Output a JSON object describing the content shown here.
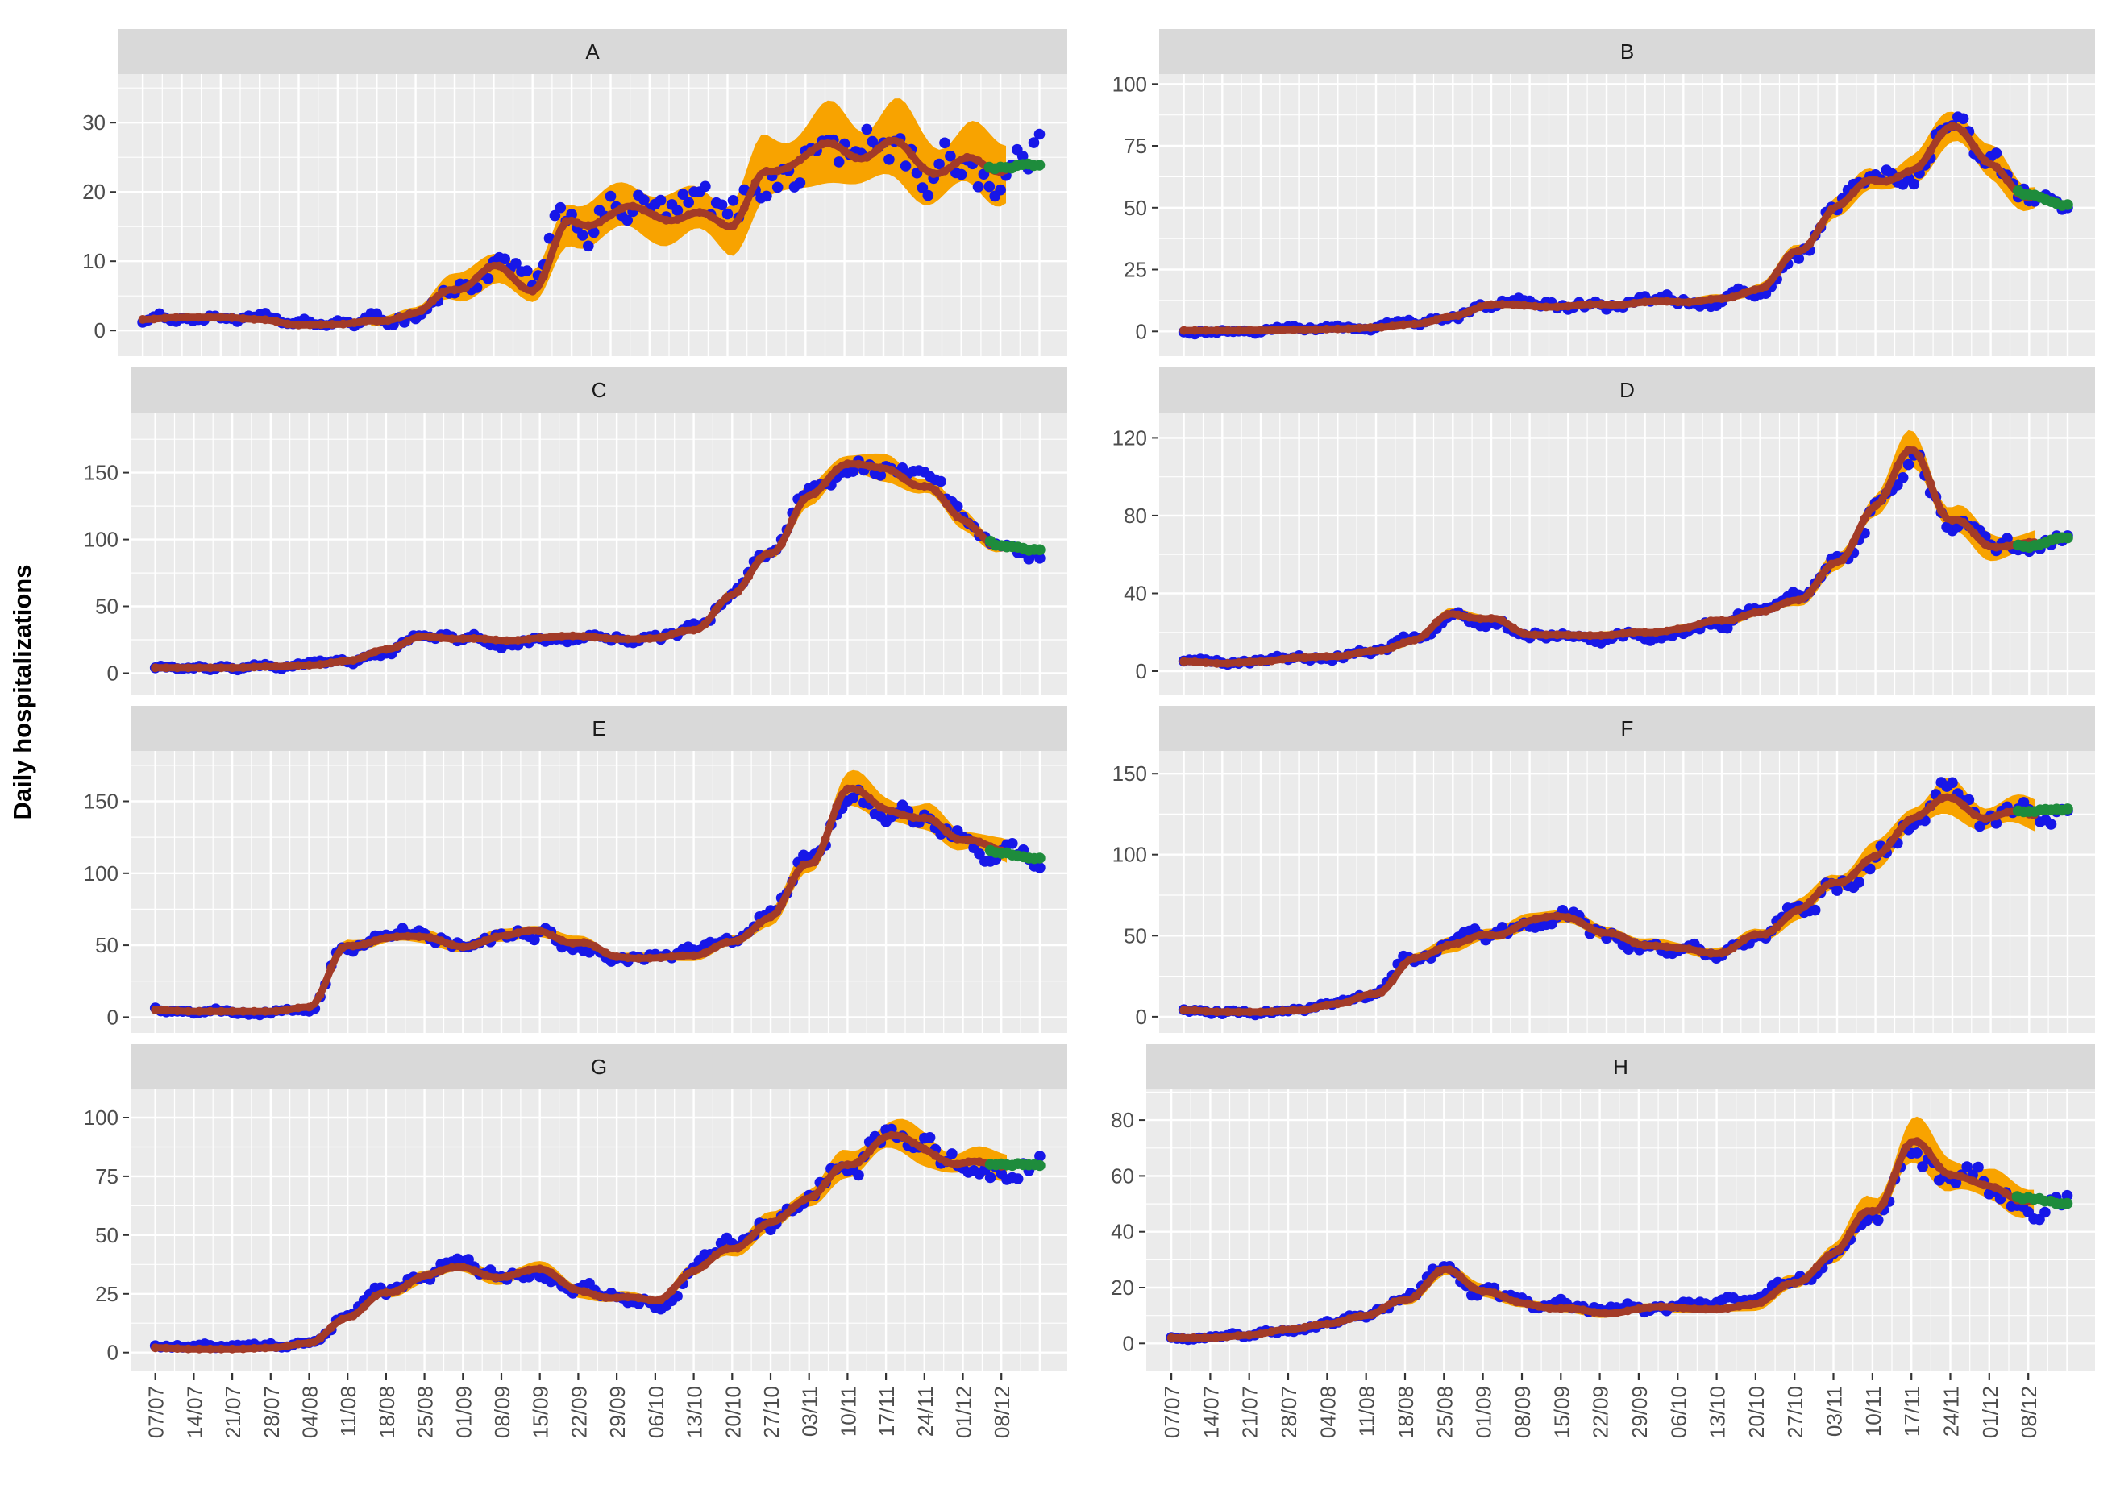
{
  "figure": {
    "type": "faceted-time-series",
    "background": "#ffffff"
  },
  "chart_data": {
    "type": "line",
    "title": "",
    "xlabel": "",
    "ylabel": "Daily hospitalizations",
    "grid": "on",
    "legend_position": "none",
    "x_axis": {
      "tick_labels": [
        "07/07",
        "14/07",
        "21/07",
        "28/07",
        "04/08",
        "11/08",
        "18/08",
        "25/08",
        "01/09",
        "08/09",
        "15/09",
        "22/09",
        "29/09",
        "06/10",
        "13/10",
        "20/10",
        "27/10",
        "03/11",
        "10/11",
        "17/11",
        "24/11",
        "01/12",
        "08/12"
      ],
      "anchor_interval_days": 7,
      "label_rotation_deg": 90
    },
    "colors": {
      "observed_points": "#1717E8",
      "fitted_line": "#A33B28",
      "credible_band": "#F8A300",
      "forecast_points": "#1E8C3C",
      "panel_background": "#EBEBEB",
      "strip_background": "#D9D9D9",
      "gridline": "#FFFFFF",
      "tick_text": "#4D4D4D",
      "tick_mark": "#333333"
    },
    "series_semantics": {
      "blue_points": "observed daily hospitalizations",
      "dark_red_line": "model fitted median",
      "orange_ribbon": "credible interval band",
      "green_points": "forecast"
    },
    "panels": [
      {
        "label": "A",
        "yticks": [
          0,
          10,
          20,
          30
        ],
        "ylim": [
          -3.7,
          37
        ],
        "weekly_fitted": [
          1.6,
          1.9,
          1.9,
          1.6,
          0.8,
          0.9,
          1.3,
          2.6,
          6.5,
          8.5,
          6.0,
          15.5,
          17.5,
          17.0,
          15.5,
          16.0,
          22.5,
          26.5,
          24.5,
          26.5,
          25.0,
          24.0,
          23.5,
          24.0
        ],
        "weekly_band": [
          0,
          0,
          0,
          0,
          0,
          0,
          0.4,
          1.0,
          1.8,
          2.2,
          2.2,
          3.0,
          3.2,
          3.2,
          3.2,
          3.5,
          4.2,
          4.6,
          4.6,
          5.0,
          4.6,
          4.2,
          4.0,
          4.0
        ],
        "forecast_value": 24.0
      },
      {
        "label": "B",
        "yticks": [
          0,
          25,
          50,
          75,
          100
        ],
        "ylim": [
          -10,
          104
        ],
        "weekly_fitted": [
          0.4,
          0.4,
          0.5,
          0.7,
          1.0,
          1.6,
          3.0,
          6.0,
          11.0,
          10.0,
          10.5,
          11.0,
          11.5,
          12.0,
          13.0,
          18.0,
          32.0,
          50.0,
          62.0,
          65.0,
          85.0,
          65.0,
          55.0,
          51.0
        ],
        "weekly_band": [
          0,
          0,
          0,
          0,
          0,
          0,
          0,
          0.6,
          1.2,
          1.2,
          1.2,
          1.2,
          1.2,
          1.3,
          1.5,
          2.0,
          2.5,
          3.5,
          4.5,
          5.0,
          7.0,
          6.0,
          5.0,
          5.0
        ],
        "forecast_value": 51.0
      },
      {
        "label": "C",
        "yticks": [
          0,
          50,
          100,
          150
        ],
        "ylim": [
          -16,
          195
        ],
        "weekly_fitted": [
          4,
          4,
          4,
          5,
          6,
          9,
          18,
          27,
          26,
          25,
          26,
          28,
          25,
          27,
          32,
          58,
          90,
          132,
          160,
          150,
          140,
          115,
          95,
          92
        ],
        "weekly_band": [
          0,
          0,
          0,
          0,
          0,
          0.8,
          1.2,
          1.8,
          1.8,
          1.8,
          1.8,
          2.0,
          2.0,
          2.0,
          2.5,
          3.5,
          4.5,
          6.5,
          8.0,
          8.0,
          7.0,
          6.0,
          5.0,
          5.0
        ],
        "forecast_value": 92
      },
      {
        "label": "D",
        "yticks": [
          0,
          40,
          80,
          120
        ],
        "ylim": [
          -12,
          133
        ],
        "weekly_fitted": [
          5,
          4,
          5,
          7,
          8,
          10,
          16,
          30,
          27,
          19,
          18,
          19,
          20,
          22,
          26,
          30,
          38,
          55,
          85,
          113,
          78,
          66,
          64,
          69
        ],
        "weekly_band": [
          0,
          0,
          0,
          0,
          0.8,
          1.2,
          2.0,
          2.5,
          2.0,
          1.5,
          1.5,
          1.5,
          1.5,
          1.5,
          2.0,
          2.0,
          3.0,
          4.0,
          6.0,
          8.0,
          7.0,
          6.0,
          5.0,
          5.0
        ],
        "forecast_value": 69
      },
      {
        "label": "E",
        "yticks": [
          0,
          50,
          100,
          150
        ],
        "ylim": [
          -11,
          185
        ],
        "weekly_fitted": [
          5,
          4,
          4,
          4,
          7,
          50,
          55,
          57,
          47,
          57,
          60,
          52,
          42,
          40,
          44,
          52,
          70,
          105,
          158,
          148,
          136,
          124,
          114,
          110
        ],
        "weekly_band": [
          0,
          0,
          0,
          0,
          0,
          3,
          4,
          4,
          4,
          4,
          4,
          4,
          3,
          3,
          3,
          4,
          5,
          8,
          10,
          9,
          8,
          7,
          7,
          7
        ],
        "forecast_value": 110
      },
      {
        "label": "F",
        "yticks": [
          0,
          50,
          100,
          150
        ],
        "ylim": [
          -10,
          164
        ],
        "weekly_fitted": [
          4,
          3,
          3,
          4,
          8,
          15,
          35,
          45,
          50,
          60,
          62,
          50,
          45,
          42,
          40,
          50,
          65,
          85,
          98,
          124,
          132,
          124,
          127,
          128
        ],
        "weekly_band": [
          0,
          0,
          0,
          0,
          0,
          2,
          3,
          4,
          4,
          4.5,
          4.5,
          4,
          3.5,
          3,
          3,
          4,
          5,
          6,
          7,
          8,
          9,
          8,
          8,
          8
        ],
        "forecast_value": 128
      },
      {
        "label": "G",
        "yticks": [
          0,
          25,
          50,
          75,
          100
        ],
        "ylim": [
          -8,
          112
        ],
        "weekly_fitted": [
          2,
          1.5,
          1.5,
          2,
          4,
          15,
          25,
          33,
          37,
          31,
          36,
          26,
          24,
          22,
          34,
          45,
          55,
          67,
          78,
          92,
          88,
          80,
          80,
          80
        ],
        "weekly_band": [
          0,
          0,
          0,
          0,
          0,
          1.5,
          2,
          2.5,
          2.5,
          2.5,
          2.5,
          2.5,
          2,
          2,
          2.5,
          3,
          3.5,
          4,
          5,
          6,
          6,
          5,
          5,
          5
        ],
        "forecast_value": 80
      },
      {
        "label": "H",
        "yticks": [
          0,
          20,
          40,
          60,
          80
        ],
        "ylim": [
          -10,
          91
        ],
        "weekly_fitted": [
          2,
          2,
          3,
          5,
          7,
          10,
          16,
          26,
          19,
          14,
          13,
          11,
          12,
          13,
          12,
          15,
          21,
          32,
          48,
          72,
          62,
          54,
          52,
          50
        ],
        "weekly_band": [
          0,
          0,
          0,
          0,
          0,
          0,
          1.5,
          2.5,
          2,
          1.5,
          1.5,
          1.5,
          1.5,
          1.5,
          1.5,
          2,
          2.5,
          3,
          5,
          7,
          6,
          5,
          5,
          5
        ],
        "forecast_value": 50
      }
    ],
    "timeline": {
      "fit_end_day": 155,
      "forecast_start_day": 152,
      "data_end_day": 161
    }
  }
}
